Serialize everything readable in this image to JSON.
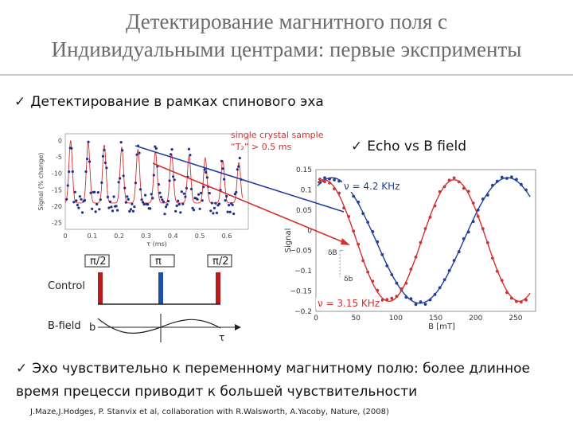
{
  "header": {
    "title_line1": "Детектирование магнитного поля с",
    "title_line2": "Индивидуальными центрами: первые эксприменты"
  },
  "bullets": {
    "b1": "Детектирование в рамках спинового эха",
    "b2": "Echo vs B field",
    "b3": "Эхо чувствительно к переменному магнитному полю: более длинное время прецесси приводит к большей чувствительности",
    "check_symbol": "✓"
  },
  "sample_note": {
    "line1": "single crystal sample",
    "line2": "“T₂” > 0.5 ms"
  },
  "pulse_diagram": {
    "pulses": [
      "π/2",
      "π",
      "π/2"
    ],
    "control_label": "Control",
    "bfield_label": "B-field",
    "b_symbol": "b",
    "tau_symbol": "τ"
  },
  "citation": "J.Maze,J.Hodges, P. Stanvix et al, collaboration with R.Walsworth, A.Yacoby, Nature, (2008)",
  "chart_data": [
    {
      "type": "scatter",
      "xlabel": "τ (ms)",
      "ylabel": "Signal (% change)",
      "x_ticks": [
        "0",
        "0.1",
        "0.2",
        "0.3",
        "0.4",
        "0.5",
        "0.6"
      ],
      "y_ticks": [
        "0",
        "-5",
        "-10",
        "-15",
        "-20",
        "-25"
      ],
      "xlim": [
        0,
        0.68
      ],
      "ylim": [
        -27,
        2
      ],
      "revival_peaks_x": [
        0.02,
        0.085,
        0.145,
        0.21,
        0.27,
        0.335,
        0.395,
        0.46,
        0.52,
        0.585,
        0.645
      ],
      "baseline_y": -19,
      "peak_y": 0,
      "colors": {
        "points": "#1f2f8f",
        "fit": "#d32f2f"
      }
    },
    {
      "type": "line",
      "xlabel": "B [mT]",
      "ylabel": "Signal",
      "x_ticks": [
        "0",
        "50",
        "100",
        "150",
        "200",
        "250"
      ],
      "y_ticks": [
        "0.15",
        "0.1",
        "0.05",
        "0",
        "−0.05",
        "−0.1",
        "−0.15",
        "−0.2"
      ],
      "xlim": [
        0,
        275
      ],
      "ylim": [
        -0.2,
        0.15
      ],
      "annotations": [
        "δB",
        "δb"
      ],
      "series": [
        {
          "name": "ν = 4.2 KHz",
          "color": "#1e3fa0",
          "amplitude": 0.155,
          "offset": -0.025,
          "period": 220,
          "phase_x": 20
        },
        {
          "name": "ν = 3.15 KHz",
          "color": "#d32f2f",
          "amplitude": 0.15,
          "offset": -0.025,
          "period": 163,
          "phase_x": 10
        }
      ]
    }
  ],
  "colors": {
    "title": "#6b6b6b",
    "blue_line": "#1e3fa0",
    "red_line": "#d32f2f",
    "control_red": "#b71c1c",
    "control_blue": "#1e4fa0"
  }
}
